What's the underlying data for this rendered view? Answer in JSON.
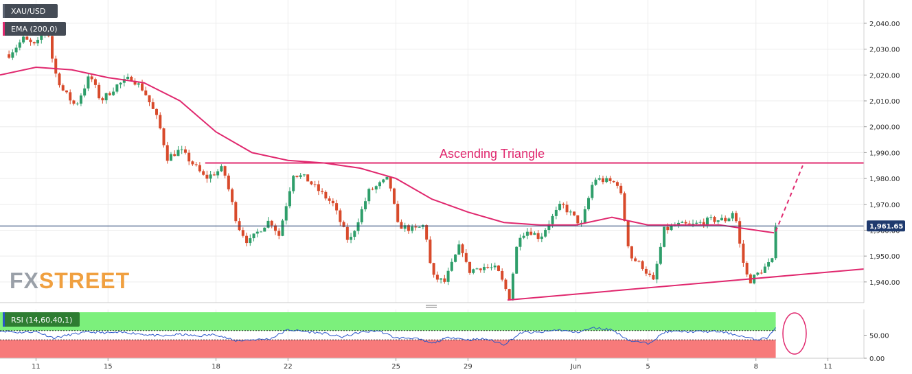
{
  "chart_data": {
    "type": "candlestick",
    "symbol": "XAU/USD",
    "indicator_label": "EMA (200,0)",
    "rsi_label": "RSI (14,60,40,1)",
    "last_price_label": "1,961.65",
    "last_price": 1961.65,
    "annotation": "Ascending Triangle",
    "watermark": {
      "fx": "FX",
      "street": "STREET"
    },
    "ylim": [
      1932,
      2049
    ],
    "y_ticks": [
      {
        "value": 1940,
        "label": "1,940.00"
      },
      {
        "value": 1950,
        "label": "1,950.00"
      },
      {
        "value": 1960,
        "label": "1,960.00"
      },
      {
        "value": 1970,
        "label": "1,970.00"
      },
      {
        "value": 1980,
        "label": "1,980.00"
      },
      {
        "value": 1990,
        "label": "1,990.00"
      },
      {
        "value": 2000,
        "label": "2,000.00"
      },
      {
        "value": 2010,
        "label": "2,010.00"
      },
      {
        "value": 2020,
        "label": "2,020.00"
      },
      {
        "value": 2030,
        "label": "2,030.00"
      },
      {
        "value": 2040,
        "label": "2,040.00"
      }
    ],
    "x_ticks": [
      {
        "day": 2,
        "label": "11"
      },
      {
        "day": 6,
        "label": "15"
      },
      {
        "day": 12,
        "label": "18"
      },
      {
        "day": 16,
        "label": "22"
      },
      {
        "day": 22,
        "label": "25"
      },
      {
        "day": 26,
        "label": "29"
      },
      {
        "day": 32,
        "label": "Jun"
      },
      {
        "day": 36,
        "label": "5"
      },
      {
        "day": 42,
        "label": "8"
      },
      {
        "day": 46,
        "label": "11"
      }
    ],
    "price_path": [
      [
        0.5,
        2028
      ],
      [
        1.3,
        2034
      ],
      [
        2.0,
        2031
      ],
      [
        2.6,
        2040
      ],
      [
        3.0,
        2022
      ],
      [
        3.5,
        2014
      ],
      [
        4.2,
        2008
      ],
      [
        5.0,
        2020
      ],
      [
        5.6,
        2010
      ],
      [
        6.5,
        2016
      ],
      [
        7.3,
        2019
      ],
      [
        8.0,
        2014
      ],
      [
        8.8,
        2002
      ],
      [
        9.3,
        1988
      ],
      [
        10.0,
        1991
      ],
      [
        10.8,
        1985
      ],
      [
        11.4,
        1980
      ],
      [
        12.4,
        1984
      ],
      [
        13.2,
        1962
      ],
      [
        13.8,
        1955
      ],
      [
        14.4,
        1960
      ],
      [
        15.0,
        1964
      ],
      [
        15.5,
        1958
      ],
      [
        16.3,
        1982
      ],
      [
        17.0,
        1980
      ],
      [
        17.6,
        1976
      ],
      [
        18.5,
        1970
      ],
      [
        19.4,
        1955
      ],
      [
        20.5,
        1975
      ],
      [
        21.6,
        1980
      ],
      [
        22.1,
        1962
      ],
      [
        23.0,
        1960
      ],
      [
        23.6,
        1962
      ],
      [
        24.0,
        1942
      ],
      [
        24.7,
        1940
      ],
      [
        25.6,
        1955
      ],
      [
        26.0,
        1944
      ],
      [
        26.8,
        1946
      ],
      [
        27.6,
        1945
      ],
      [
        28.3,
        1934
      ],
      [
        28.8,
        1958
      ],
      [
        29.4,
        1960
      ],
      [
        30.0,
        1957
      ],
      [
        30.5,
        1963
      ],
      [
        31.2,
        1970
      ],
      [
        32.3,
        1962
      ],
      [
        33.0,
        1980
      ],
      [
        34.4,
        1978
      ],
      [
        35.0,
        1950
      ],
      [
        35.7,
        1946
      ],
      [
        36.3,
        1940
      ],
      [
        36.9,
        1960
      ],
      [
        37.6,
        1962
      ],
      [
        38.5,
        1962
      ],
      [
        39.5,
        1964
      ],
      [
        40.4,
        1964
      ],
      [
        40.8,
        1968
      ],
      [
        41.2,
        1950
      ],
      [
        41.6,
        1940
      ],
      [
        42.4,
        1945
      ],
      [
        42.9,
        1948
      ],
      [
        43.0,
        1960
      ],
      [
        43.1,
        1962.5
      ]
    ],
    "ema_path": [
      [
        0,
        2020
      ],
      [
        2,
        2023
      ],
      [
        4,
        2022
      ],
      [
        6,
        2019
      ],
      [
        8,
        2017
      ],
      [
        10,
        2010
      ],
      [
        12,
        1998
      ],
      [
        14,
        1990
      ],
      [
        16,
        1987
      ],
      [
        18,
        1986
      ],
      [
        20,
        1984
      ],
      [
        22,
        1980
      ],
      [
        24,
        1972
      ],
      [
        26,
        1967
      ],
      [
        28,
        1963
      ],
      [
        30,
        1962
      ],
      [
        32,
        1962
      ],
      [
        34,
        1965
      ],
      [
        36,
        1962
      ],
      [
        38,
        1962
      ],
      [
        40,
        1962
      ],
      [
        42,
        1960
      ],
      [
        43,
        1959
      ]
    ],
    "trendlines": {
      "resistance": {
        "from": [
          11.4,
          1986
        ],
        "to": [
          48,
          1986
        ]
      },
      "support": {
        "from": [
          28.2,
          1933
        ],
        "to": [
          48,
          1945
        ]
      },
      "projection": {
        "from": [
          43.1,
          1959.5
        ],
        "to": [
          44.6,
          1985
        ]
      }
    },
    "rsi": {
      "ylim": [
        0,
        100
      ],
      "upper": 60,
      "lower": 40,
      "y_ticks": [
        {
          "value": 0,
          "label": "0.00"
        },
        {
          "value": 50,
          "label": "50.00"
        }
      ],
      "path": [
        [
          0,
          60
        ],
        [
          1,
          56
        ],
        [
          2,
          58
        ],
        [
          3,
          44
        ],
        [
          4,
          52
        ],
        [
          5,
          57
        ],
        [
          6,
          55
        ],
        [
          7,
          56
        ],
        [
          8,
          52
        ],
        [
          9,
          48
        ],
        [
          10,
          52
        ],
        [
          11,
          48
        ],
        [
          12,
          52
        ],
        [
          13,
          38
        ],
        [
          14,
          40
        ],
        [
          15,
          42
        ],
        [
          16,
          62
        ],
        [
          17,
          58
        ],
        [
          18,
          54
        ],
        [
          19,
          46
        ],
        [
          20,
          56
        ],
        [
          21,
          60
        ],
        [
          22,
          44
        ],
        [
          23,
          44
        ],
        [
          24,
          32
        ],
        [
          25,
          46
        ],
        [
          26,
          40
        ],
        [
          27,
          42
        ],
        [
          28,
          30
        ],
        [
          29,
          56
        ],
        [
          30,
          56
        ],
        [
          31,
          62
        ],
        [
          32,
          56
        ],
        [
          33,
          66
        ],
        [
          34,
          62
        ],
        [
          35,
          38
        ],
        [
          36,
          32
        ],
        [
          37,
          58
        ],
        [
          38,
          58
        ],
        [
          39,
          58
        ],
        [
          40,
          58
        ],
        [
          41,
          50
        ],
        [
          42,
          40
        ],
        [
          42.6,
          44
        ],
        [
          43.1,
          66
        ]
      ]
    },
    "colors": {
      "bull": "#2e9e6a",
      "bear": "#d84a2b",
      "ema": "#e0286e",
      "trend": "#e0286e",
      "price_line": "#1f3a6e",
      "rsi_line": "#2a56c8",
      "rsi_upper_fill": "#7cf07c",
      "rsi_lower_fill": "#f77a7a"
    }
  }
}
